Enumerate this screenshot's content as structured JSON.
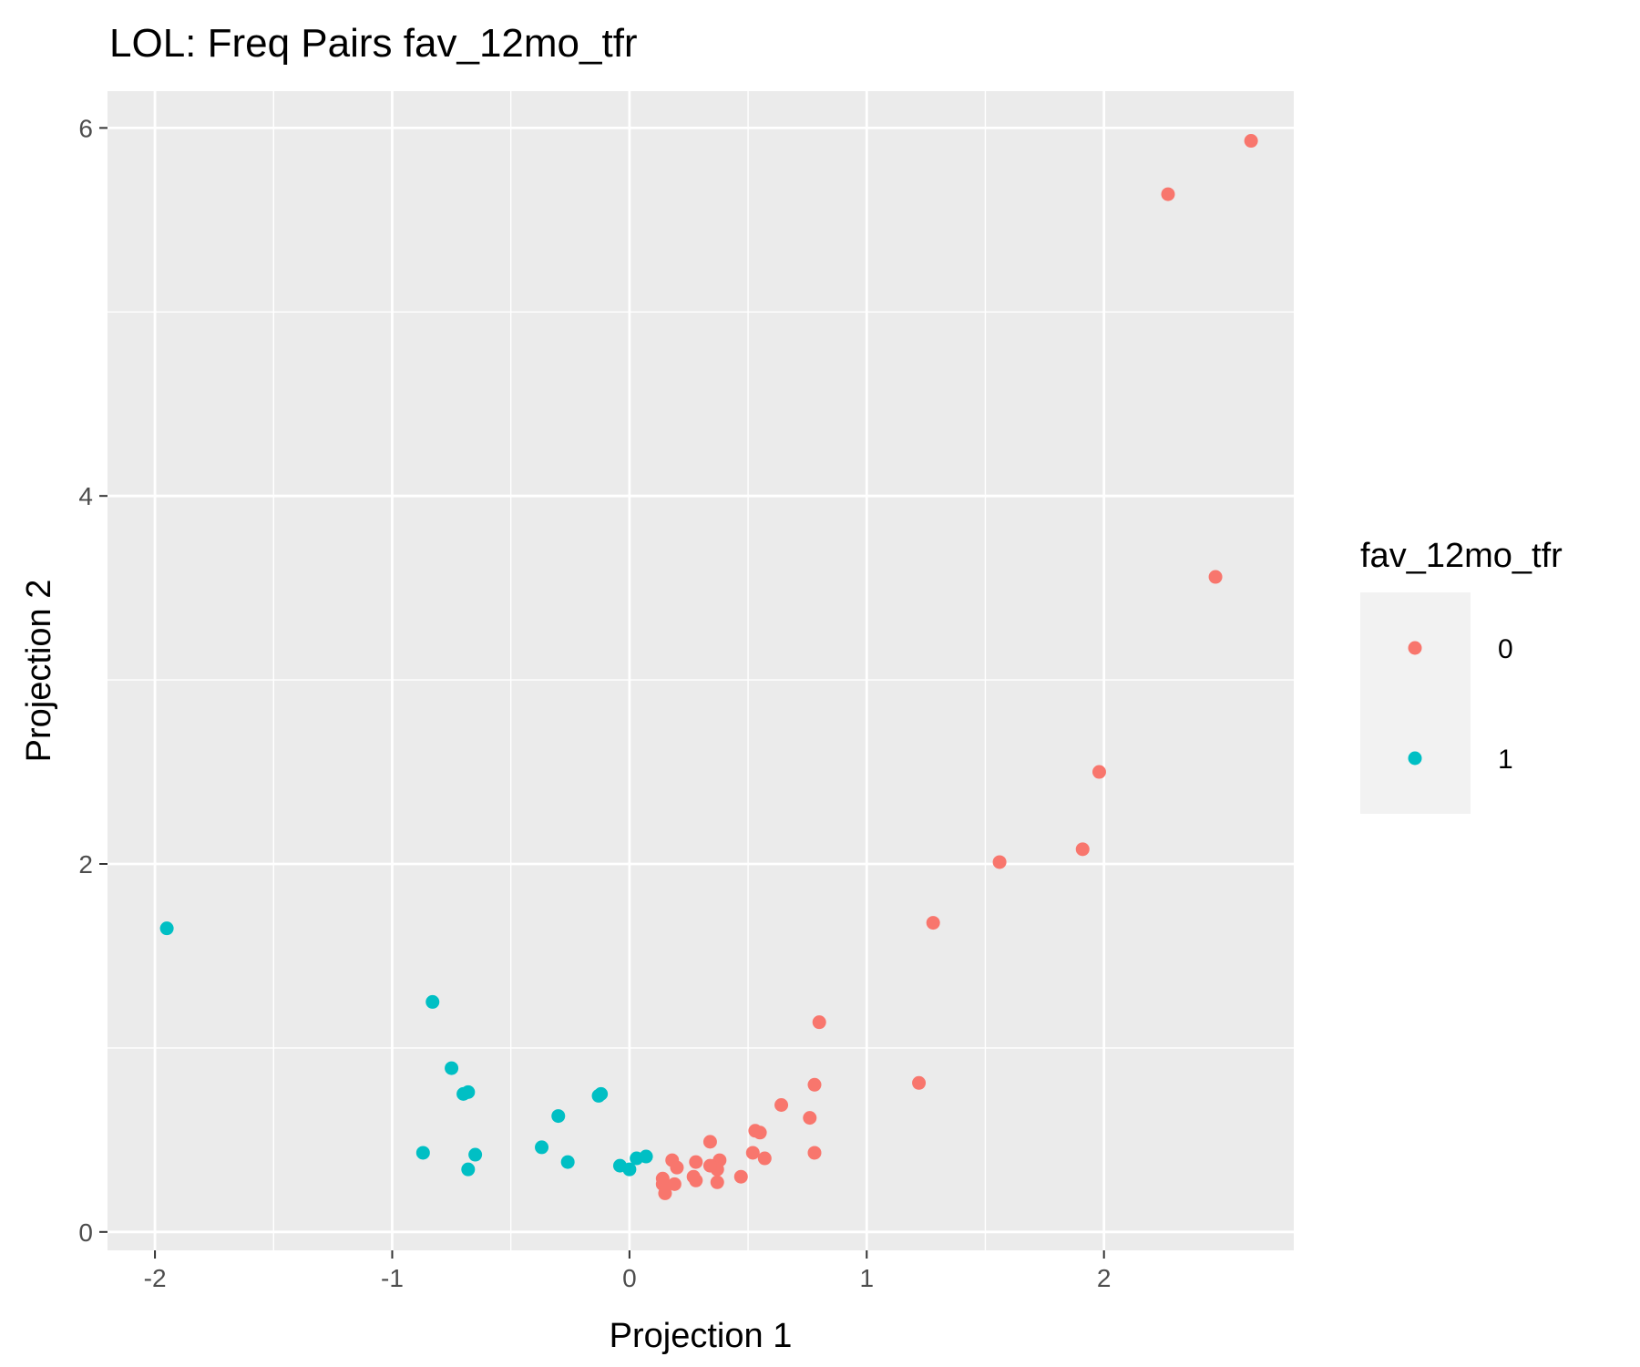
{
  "chart_data": {
    "type": "scatter",
    "title": "LOL: Freq Pairs fav_12mo_tfr",
    "xlabel": "Projection 1",
    "ylabel": "Projection 2",
    "xlim": [
      -2.2,
      2.8
    ],
    "ylim": [
      -0.1,
      6.2
    ],
    "x_ticks": [
      -2,
      -1,
      0,
      1,
      2
    ],
    "x_tick_labels": [
      "-2",
      "-1",
      "0",
      "1",
      "2"
    ],
    "y_ticks": [
      0,
      2,
      4,
      6
    ],
    "y_tick_labels": [
      "0",
      "2",
      "4",
      "6"
    ],
    "grid": true,
    "legend": {
      "title": "fav_12mo_tfr",
      "placement": "right",
      "entries": [
        {
          "label": "0",
          "color": "#F8766D"
        },
        {
          "label": "1",
          "color": "#00BFC4"
        }
      ]
    },
    "series": [
      {
        "name": "0",
        "color": "#F8766D",
        "points": [
          [
            2.62,
            5.93
          ],
          [
            2.27,
            5.64
          ],
          [
            2.47,
            3.56
          ],
          [
            1.98,
            2.5
          ],
          [
            1.91,
            2.08
          ],
          [
            1.56,
            2.01
          ],
          [
            1.28,
            1.68
          ],
          [
            1.22,
            0.81
          ],
          [
            0.8,
            1.14
          ],
          [
            0.78,
            0.8
          ],
          [
            0.78,
            0.43
          ],
          [
            0.76,
            0.62
          ],
          [
            0.64,
            0.69
          ],
          [
            0.55,
            0.54
          ],
          [
            0.53,
            0.55
          ],
          [
            0.57,
            0.4
          ],
          [
            0.52,
            0.43
          ],
          [
            0.47,
            0.3
          ],
          [
            0.34,
            0.49
          ],
          [
            0.38,
            0.39
          ],
          [
            0.36,
            0.36
          ],
          [
            0.37,
            0.34
          ],
          [
            0.34,
            0.36
          ],
          [
            0.37,
            0.27
          ],
          [
            0.28,
            0.38
          ],
          [
            0.27,
            0.3
          ],
          [
            0.28,
            0.28
          ],
          [
            0.18,
            0.39
          ],
          [
            0.2,
            0.35
          ],
          [
            0.14,
            0.29
          ],
          [
            0.14,
            0.26
          ],
          [
            0.19,
            0.26
          ],
          [
            0.15,
            0.21
          ]
        ]
      },
      {
        "name": "1",
        "color": "#00BFC4",
        "points": [
          [
            -1.95,
            1.65
          ],
          [
            -0.83,
            1.25
          ],
          [
            -0.75,
            0.89
          ],
          [
            -0.7,
            0.75
          ],
          [
            -0.68,
            0.76
          ],
          [
            -0.87,
            0.43
          ],
          [
            -0.65,
            0.42
          ],
          [
            -0.68,
            0.34
          ],
          [
            -0.3,
            0.63
          ],
          [
            -0.37,
            0.46
          ],
          [
            -0.26,
            0.38
          ],
          [
            -0.13,
            0.74
          ],
          [
            -0.12,
            0.75
          ],
          [
            -0.04,
            0.36
          ],
          [
            0.0,
            0.34
          ],
          [
            0.03,
            0.4
          ],
          [
            0.07,
            0.41
          ]
        ]
      }
    ]
  }
}
